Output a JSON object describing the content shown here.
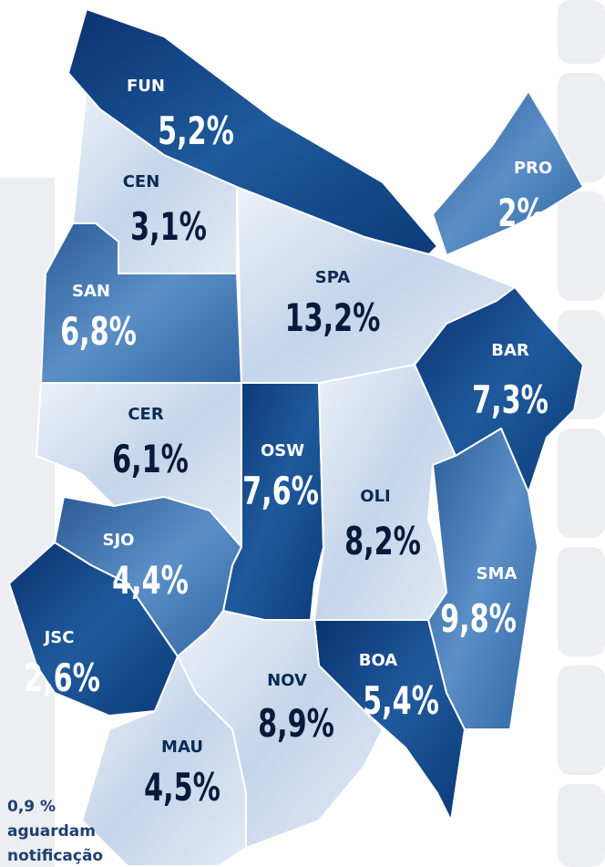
{
  "regions": [
    {
      "code": "FUN",
      "share": "5,2%"
    },
    {
      "code": "CEN",
      "share": "3,1%"
    },
    {
      "code": "PRO",
      "share": "2%"
    },
    {
      "code": "SAN",
      "share": "6,8%"
    },
    {
      "code": "SPA",
      "share": "13,2%"
    },
    {
      "code": "BAR",
      "share": "7,3%"
    },
    {
      "code": "CER",
      "share": "6,1%"
    },
    {
      "code": "OSW",
      "share": "7,6%"
    },
    {
      "code": "OLI",
      "share": "8,2%"
    },
    {
      "code": "SJO",
      "share": "4,4%"
    },
    {
      "code": "JSC",
      "share": "2,6%"
    },
    {
      "code": "SMA",
      "share": "9,8%"
    },
    {
      "code": "BOA",
      "share": "5,4%"
    },
    {
      "code": "NOV",
      "share": "8,9%"
    },
    {
      "code": "MAU",
      "share": "4,5%"
    }
  ],
  "note": [
    "0,9 %",
    "aguardam",
    "notificação"
  ]
}
